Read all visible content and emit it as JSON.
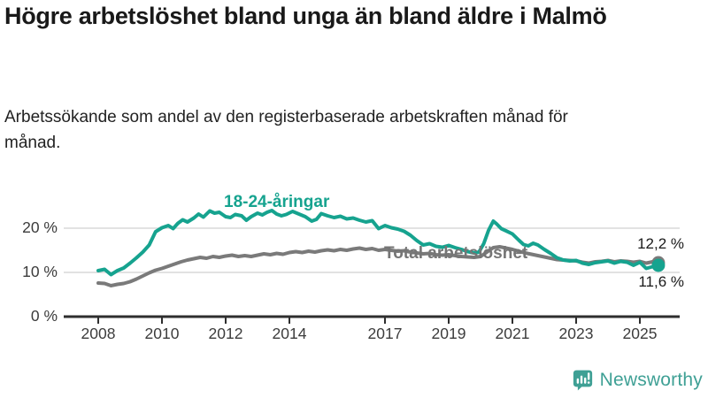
{
  "header": {
    "title": "Högre arbetslöshet bland unga än bland äldre i Malmö",
    "subtitle": "Arbetssökande som andel av den registerbaserade arbetskraften månad för månad."
  },
  "chart_data": {
    "type": "line",
    "title": "Högre arbetslöshet bland unga än bland äldre i Malmö",
    "subtitle": "Arbetssökande som andel av den registerbaserade arbetskraften månad för månad.",
    "xlabel": "",
    "ylabel": "",
    "xlim": [
      2006.9,
      2026.3
    ],
    "ylim": [
      0,
      26
    ],
    "grid": "horizontal",
    "legend_position": "inline-labels",
    "x_ticks": [
      "2008",
      "2010",
      "2012",
      "2014",
      "2017",
      "2019",
      "2021",
      "2023",
      "2025"
    ],
    "x_tick_years": [
      2008,
      2010,
      2012,
      2014,
      2017,
      2019,
      2021,
      2023,
      2025
    ],
    "y_ticks": [
      {
        "value": 0,
        "label": "0 %"
      },
      {
        "value": 10,
        "label": "10 %"
      },
      {
        "value": 20,
        "label": "20 %"
      }
    ],
    "series": [
      {
        "name": "Total arbetslöshet",
        "color": "#7a7a7a",
        "end_label": "12,2 %",
        "end_value": 12.2,
        "points": [
          [
            2008.0,
            7.6
          ],
          [
            2008.2,
            7.5
          ],
          [
            2008.4,
            7.0
          ],
          [
            2008.6,
            7.3
          ],
          [
            2008.8,
            7.5
          ],
          [
            2009.0,
            7.9
          ],
          [
            2009.2,
            8.5
          ],
          [
            2009.4,
            9.2
          ],
          [
            2009.6,
            9.9
          ],
          [
            2009.8,
            10.5
          ],
          [
            2010.0,
            10.9
          ],
          [
            2010.2,
            11.4
          ],
          [
            2010.4,
            11.9
          ],
          [
            2010.6,
            12.4
          ],
          [
            2010.8,
            12.8
          ],
          [
            2011.0,
            13.1
          ],
          [
            2011.2,
            13.4
          ],
          [
            2011.4,
            13.2
          ],
          [
            2011.6,
            13.6
          ],
          [
            2011.8,
            13.4
          ],
          [
            2012.0,
            13.7
          ],
          [
            2012.2,
            13.9
          ],
          [
            2012.4,
            13.6
          ],
          [
            2012.6,
            13.8
          ],
          [
            2012.8,
            13.6
          ],
          [
            2013.0,
            13.9
          ],
          [
            2013.2,
            14.2
          ],
          [
            2013.4,
            14.0
          ],
          [
            2013.6,
            14.3
          ],
          [
            2013.8,
            14.1
          ],
          [
            2014.0,
            14.5
          ],
          [
            2014.2,
            14.7
          ],
          [
            2014.4,
            14.5
          ],
          [
            2014.6,
            14.8
          ],
          [
            2014.8,
            14.6
          ],
          [
            2015.0,
            14.9
          ],
          [
            2015.2,
            15.1
          ],
          [
            2015.4,
            14.9
          ],
          [
            2015.6,
            15.2
          ],
          [
            2015.8,
            15.0
          ],
          [
            2016.0,
            15.3
          ],
          [
            2016.2,
            15.5
          ],
          [
            2016.4,
            15.2
          ],
          [
            2016.6,
            15.4
          ],
          [
            2016.8,
            15.0
          ],
          [
            2017.0,
            15.2
          ],
          [
            2017.2,
            15.0
          ],
          [
            2017.4,
            14.8
          ],
          [
            2017.6,
            14.9
          ],
          [
            2017.8,
            14.6
          ],
          [
            2018.0,
            14.4
          ],
          [
            2018.2,
            14.2
          ],
          [
            2018.4,
            14.3
          ],
          [
            2018.6,
            14.0
          ],
          [
            2018.8,
            13.9
          ],
          [
            2019.0,
            14.0
          ],
          [
            2019.2,
            13.8
          ],
          [
            2019.4,
            13.6
          ],
          [
            2019.6,
            13.5
          ],
          [
            2019.8,
            13.4
          ],
          [
            2020.0,
            13.6
          ],
          [
            2020.2,
            14.6
          ],
          [
            2020.4,
            15.6
          ],
          [
            2020.6,
            15.8
          ],
          [
            2020.8,
            15.5
          ],
          [
            2021.0,
            15.2
          ],
          [
            2021.2,
            14.8
          ],
          [
            2021.4,
            14.4
          ],
          [
            2021.6,
            14.1
          ],
          [
            2021.8,
            13.8
          ],
          [
            2022.0,
            13.5
          ],
          [
            2022.2,
            13.2
          ],
          [
            2022.4,
            12.9
          ],
          [
            2022.6,
            12.8
          ],
          [
            2022.8,
            12.7
          ],
          [
            2023.0,
            12.6
          ],
          [
            2023.2,
            12.3
          ],
          [
            2023.4,
            12.1
          ],
          [
            2023.6,
            12.4
          ],
          [
            2023.8,
            12.5
          ],
          [
            2024.0,
            12.7
          ],
          [
            2024.2,
            12.4
          ],
          [
            2024.4,
            12.6
          ],
          [
            2024.6,
            12.5
          ],
          [
            2024.8,
            12.3
          ],
          [
            2025.0,
            12.5
          ],
          [
            2025.2,
            12.1
          ],
          [
            2025.4,
            12.4
          ],
          [
            2025.58,
            12.2
          ]
        ]
      },
      {
        "name": "18-24-åringar",
        "color": "#16a38f",
        "end_label": "11,6 %",
        "end_value": 11.6,
        "points": [
          [
            2008.0,
            10.4
          ],
          [
            2008.2,
            10.7
          ],
          [
            2008.4,
            9.5
          ],
          [
            2008.6,
            10.4
          ],
          [
            2008.8,
            11.0
          ],
          [
            2009.0,
            12.1
          ],
          [
            2009.2,
            13.3
          ],
          [
            2009.4,
            14.6
          ],
          [
            2009.6,
            16.2
          ],
          [
            2009.8,
            19.2
          ],
          [
            2010.0,
            20.1
          ],
          [
            2010.2,
            20.6
          ],
          [
            2010.35,
            19.9
          ],
          [
            2010.5,
            21.1
          ],
          [
            2010.65,
            21.9
          ],
          [
            2010.8,
            21.4
          ],
          [
            2011.0,
            22.3
          ],
          [
            2011.15,
            23.2
          ],
          [
            2011.3,
            22.5
          ],
          [
            2011.5,
            23.9
          ],
          [
            2011.65,
            23.4
          ],
          [
            2011.8,
            23.6
          ],
          [
            2012.0,
            22.6
          ],
          [
            2012.15,
            22.4
          ],
          [
            2012.3,
            23.1
          ],
          [
            2012.5,
            22.8
          ],
          [
            2012.65,
            21.8
          ],
          [
            2012.8,
            22.6
          ],
          [
            2013.0,
            23.4
          ],
          [
            2013.15,
            23.0
          ],
          [
            2013.3,
            23.6
          ],
          [
            2013.45,
            24.0
          ],
          [
            2013.6,
            23.2
          ],
          [
            2013.75,
            22.8
          ],
          [
            2013.9,
            23.1
          ],
          [
            2014.1,
            23.8
          ],
          [
            2014.3,
            23.2
          ],
          [
            2014.5,
            22.6
          ],
          [
            2014.7,
            21.6
          ],
          [
            2014.85,
            22.0
          ],
          [
            2015.0,
            23.3
          ],
          [
            2015.2,
            22.8
          ],
          [
            2015.4,
            22.4
          ],
          [
            2015.6,
            22.7
          ],
          [
            2015.8,
            22.1
          ],
          [
            2016.0,
            22.3
          ],
          [
            2016.2,
            21.8
          ],
          [
            2016.4,
            21.4
          ],
          [
            2016.6,
            21.7
          ],
          [
            2016.8,
            19.9
          ],
          [
            2017.0,
            20.6
          ],
          [
            2017.2,
            20.1
          ],
          [
            2017.4,
            19.8
          ],
          [
            2017.6,
            19.3
          ],
          [
            2017.8,
            18.4
          ],
          [
            2018.0,
            17.2
          ],
          [
            2018.2,
            16.2
          ],
          [
            2018.4,
            16.5
          ],
          [
            2018.6,
            15.9
          ],
          [
            2018.8,
            15.7
          ],
          [
            2019.0,
            16.1
          ],
          [
            2019.2,
            15.6
          ],
          [
            2019.4,
            15.2
          ],
          [
            2019.6,
            14.7
          ],
          [
            2019.8,
            14.4
          ],
          [
            2019.95,
            14.6
          ],
          [
            2020.1,
            16.5
          ],
          [
            2020.25,
            19.5
          ],
          [
            2020.4,
            21.6
          ],
          [
            2020.5,
            21.0
          ],
          [
            2020.65,
            19.9
          ],
          [
            2020.8,
            19.4
          ],
          [
            2021.0,
            18.7
          ],
          [
            2021.2,
            17.3
          ],
          [
            2021.35,
            16.3
          ],
          [
            2021.5,
            16.0
          ],
          [
            2021.65,
            16.6
          ],
          [
            2021.8,
            16.2
          ],
          [
            2022.0,
            15.2
          ],
          [
            2022.2,
            14.3
          ],
          [
            2022.4,
            13.3
          ],
          [
            2022.6,
            12.8
          ],
          [
            2022.8,
            12.6
          ],
          [
            2023.0,
            12.7
          ],
          [
            2023.2,
            12.1
          ],
          [
            2023.4,
            11.8
          ],
          [
            2023.6,
            12.2
          ],
          [
            2023.8,
            12.4
          ],
          [
            2024.0,
            12.6
          ],
          [
            2024.2,
            12.1
          ],
          [
            2024.4,
            12.5
          ],
          [
            2024.6,
            12.3
          ],
          [
            2024.8,
            11.6
          ],
          [
            2025.0,
            12.3
          ],
          [
            2025.2,
            10.9
          ],
          [
            2025.4,
            11.3
          ],
          [
            2025.58,
            11.6
          ]
        ]
      }
    ],
    "colors": {
      "grid": "#d9d9d9",
      "axis": "#2e2e2e",
      "tick_text": "#3c3c3c"
    }
  },
  "footer": {
    "brand": "Newsworthy",
    "logo_icon": "bar-chart-speech-bubble",
    "logo_color": "#3fa095"
  }
}
